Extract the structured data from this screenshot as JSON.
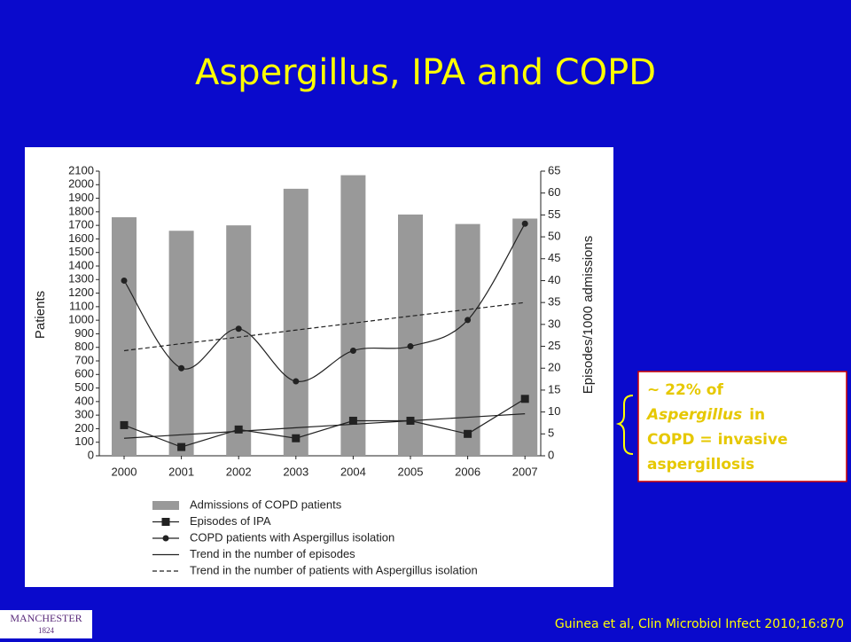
{
  "slide_title": "Aspergillus, IPA and COPD",
  "callout": {
    "lines": [
      [
        "~ 22% of"
      ],
      [
        "Aspergillus",
        "in"
      ],
      [
        "COPD = invasive"
      ],
      [
        "aspergillosis"
      ]
    ]
  },
  "citation": "Guinea et al, Clin Microbiol Infect 2010;16:870",
  "logo": {
    "name": "MANCHESTER",
    "year": "1824"
  },
  "chart_data": {
    "type": "bar",
    "categories": [
      "2000",
      "2001",
      "2002",
      "2003",
      "2004",
      "2005",
      "2006",
      "2007"
    ],
    "y_label": "Patients",
    "y2_label": "Episodes/1000 admissions",
    "ylim": [
      0,
      2100
    ],
    "yticks": [
      0,
      100,
      200,
      300,
      400,
      500,
      600,
      700,
      800,
      900,
      1000,
      1100,
      1200,
      1300,
      1400,
      1500,
      1600,
      1700,
      1800,
      1900,
      2000,
      2100
    ],
    "y2lim": [
      0,
      65
    ],
    "y2ticks": [
      0,
      5,
      10,
      15,
      20,
      25,
      30,
      35,
      40,
      45,
      50,
      55,
      60,
      65
    ],
    "series": [
      {
        "name": "Admissions of COPD patients",
        "type": "bar",
        "color": "#999999",
        "values": [
          1760,
          1660,
          1700,
          1970,
          2070,
          1780,
          1710,
          1750
        ]
      },
      {
        "name": "Episodes of IPA",
        "type": "line",
        "axis": "y2",
        "color": "#222222",
        "marker": "square",
        "values": [
          7,
          2,
          6,
          4,
          8,
          8,
          5,
          13
        ]
      },
      {
        "name": "COPD patients with Aspergillus isolation",
        "type": "line",
        "axis": "y2",
        "color": "#222222",
        "marker": "circle",
        "smooth": true,
        "values": [
          40,
          20,
          29,
          17,
          24,
          25,
          31,
          53
        ]
      },
      {
        "name": "Trend in the number of episodes",
        "type": "line",
        "axis": "y2",
        "color": "#222222",
        "values": [
          4.0,
          4.8,
          5.6,
          6.4,
          7.2,
          8.0,
          8.8,
          9.6
        ]
      },
      {
        "name": "Trend in the number of patients with Aspergillus isolation",
        "type": "line",
        "axis": "y2",
        "color": "#222222",
        "dashed": true,
        "values": [
          24,
          25.6,
          27.1,
          28.7,
          30.3,
          31.9,
          33.4,
          35
        ]
      }
    ]
  }
}
